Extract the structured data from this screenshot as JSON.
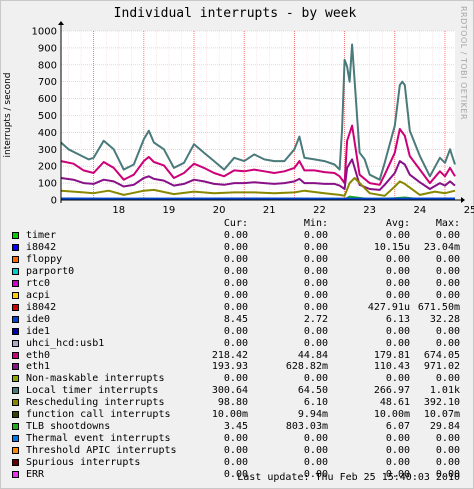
{
  "chart_data": {
    "type": "line",
    "title": "Individual interrupts - by week",
    "ylabel": "interrupts / second",
    "ylim": [
      0,
      1000
    ],
    "yticks": [
      0,
      100,
      200,
      300,
      400,
      500,
      600,
      700,
      800,
      900,
      1000
    ],
    "x_tick_labels": [
      "18",
      "19",
      "20",
      "21",
      "22",
      "23",
      "24",
      "25"
    ],
    "x_range_days": [
      17.35,
      25.2
    ],
    "grid": true,
    "series": [
      {
        "name": "eth0",
        "color": "#cc0077",
        "x": [
          17.35,
          17.6,
          17.8,
          18.0,
          18.2,
          18.4,
          18.6,
          18.8,
          19.0,
          19.1,
          19.2,
          19.4,
          19.6,
          19.8,
          20.0,
          20.2,
          20.4,
          20.6,
          20.8,
          21.0,
          21.2,
          21.4,
          21.6,
          21.8,
          22.0,
          22.1,
          22.2,
          22.4,
          22.6,
          22.8,
          22.9,
          23.0,
          23.05,
          23.15,
          23.3,
          23.5,
          23.7,
          23.8,
          24.0,
          24.1,
          24.2,
          24.3,
          24.5,
          24.7,
          24.9,
          25.0,
          25.1,
          25.2
        ],
        "y": [
          230,
          215,
          175,
          160,
          225,
          190,
          120,
          150,
          230,
          255,
          225,
          205,
          130,
          160,
          215,
          190,
          160,
          140,
          175,
          170,
          180,
          170,
          160,
          170,
          190,
          230,
          175,
          175,
          165,
          160,
          140,
          100,
          350,
          440,
          150,
          100,
          90,
          150,
          280,
          420,
          380,
          260,
          180,
          100,
          170,
          140,
          190,
          140
        ]
      },
      {
        "name": "eth1",
        "color": "#881188",
        "x": [
          17.35,
          17.6,
          17.8,
          18.0,
          18.2,
          18.4,
          18.6,
          18.8,
          19.0,
          19.1,
          19.2,
          19.4,
          19.6,
          19.8,
          20.0,
          20.2,
          20.4,
          20.6,
          20.8,
          21.0,
          21.2,
          21.4,
          21.6,
          21.8,
          22.0,
          22.1,
          22.2,
          22.4,
          22.6,
          22.8,
          22.9,
          23.0,
          23.05,
          23.15,
          23.3,
          23.5,
          23.7,
          23.8,
          24.0,
          24.1,
          24.2,
          24.3,
          24.5,
          24.7,
          24.9,
          25.0,
          25.1,
          25.2
        ],
        "y": [
          130,
          120,
          100,
          95,
          120,
          110,
          80,
          90,
          130,
          140,
          125,
          115,
          85,
          95,
          120,
          110,
          95,
          90,
          100,
          100,
          105,
          100,
          95,
          100,
          110,
          125,
          100,
          100,
          95,
          95,
          85,
          65,
          190,
          240,
          90,
          65,
          60,
          90,
          160,
          230,
          210,
          150,
          105,
          65,
          100,
          85,
          110,
          85
        ]
      },
      {
        "name": "Local timer interrupts",
        "color": "#4a7a7a",
        "x": [
          17.35,
          17.5,
          17.7,
          17.9,
          18.0,
          18.2,
          18.4,
          18.6,
          18.8,
          19.0,
          19.1,
          19.2,
          19.4,
          19.6,
          19.8,
          20.0,
          20.2,
          20.4,
          20.6,
          20.8,
          21.0,
          21.2,
          21.4,
          21.6,
          21.8,
          22.0,
          22.1,
          22.2,
          22.4,
          22.6,
          22.8,
          22.9,
          22.95,
          23.0,
          23.05,
          23.1,
          23.15,
          23.3,
          23.4,
          23.5,
          23.7,
          23.8,
          24.0,
          24.1,
          24.15,
          24.2,
          24.3,
          24.5,
          24.7,
          24.9,
          25.0,
          25.1,
          25.2
        ],
        "y": [
          340,
          300,
          270,
          240,
          250,
          350,
          300,
          180,
          210,
          360,
          410,
          340,
          300,
          190,
          220,
          330,
          280,
          230,
          180,
          250,
          230,
          270,
          240,
          230,
          230,
          300,
          375,
          250,
          240,
          230,
          210,
          180,
          420,
          830,
          790,
          700,
          920,
          280,
          240,
          150,
          120,
          220,
          440,
          680,
          700,
          680,
          410,
          260,
          140,
          250,
          220,
          300,
          210
        ]
      },
      {
        "name": "Rescheduling interrupts",
        "color": "#888800",
        "x": [
          17.35,
          17.8,
          18.0,
          18.3,
          18.6,
          19.0,
          19.2,
          19.6,
          20.0,
          20.4,
          20.8,
          21.2,
          21.6,
          22.0,
          22.2,
          22.6,
          22.9,
          23.0,
          23.1,
          23.2,
          23.5,
          23.8,
          24.0,
          24.1,
          24.2,
          24.5,
          24.8,
          25.0,
          25.2
        ],
        "y": [
          55,
          45,
          40,
          55,
          30,
          55,
          60,
          35,
          50,
          40,
          45,
          45,
          40,
          45,
          55,
          40,
          30,
          25,
          100,
          130,
          40,
          25,
          80,
          110,
          95,
          30,
          50,
          40,
          55
        ]
      },
      {
        "name": "TLB shootdowns",
        "color": "#22aa22",
        "x": [
          17.35,
          18.0,
          18.5,
          19.0,
          19.5,
          20.0,
          20.5,
          21.0,
          21.5,
          22.0,
          22.5,
          23.0,
          23.1,
          23.5,
          24.0,
          24.2,
          24.5,
          25.0,
          25.2
        ],
        "y": [
          8,
          6,
          3,
          8,
          4,
          7,
          4,
          6,
          5,
          8,
          5,
          3,
          20,
          4,
          10,
          15,
          5,
          6,
          5
        ]
      },
      {
        "name": "ide0",
        "color": "#0044cc",
        "x": [
          17.35,
          19.0,
          21.0,
          23.0,
          25.2
        ],
        "y": [
          9,
          8,
          9,
          8,
          9
        ]
      }
    ]
  },
  "legend_headers": {
    "cur": "Cur:",
    "min": "Min:",
    "avg": "Avg:",
    "max": "Max:"
  },
  "legend": [
    {
      "name": "timer",
      "color": "#00cc00",
      "cur": "0.00",
      "min": "0.00",
      "avg": "0.00",
      "max": "0.00"
    },
    {
      "name": "i8042",
      "color": "#0000ff",
      "cur": "0.00",
      "min": "0.00",
      "avg": "10.15u",
      "max": "23.04m"
    },
    {
      "name": "floppy",
      "color": "#ff6600",
      "cur": "0.00",
      "min": "0.00",
      "avg": "0.00",
      "max": "0.00"
    },
    {
      "name": "parport0",
      "color": "#00cccc",
      "cur": "0.00",
      "min": "0.00",
      "avg": "0.00",
      "max": "0.00"
    },
    {
      "name": "rtc0",
      "color": "#cc00cc",
      "cur": "0.00",
      "min": "0.00",
      "avg": "0.00",
      "max": "0.00"
    },
    {
      "name": "acpi",
      "color": "#ffcc00",
      "cur": "0.00",
      "min": "0.00",
      "avg": "0.00",
      "max": "0.00"
    },
    {
      "name": "i8042",
      "color": "#cc0000",
      "cur": "0.00",
      "min": "0.00",
      "avg": "427.91u",
      "max": "671.50m"
    },
    {
      "name": "ide0",
      "color": "#0044cc",
      "cur": "8.45",
      "min": "2.72",
      "avg": "6.13",
      "max": "32.28"
    },
    {
      "name": "ide1",
      "color": "#0000aa",
      "cur": "0.00",
      "min": "0.00",
      "avg": "0.00",
      "max": "0.00"
    },
    {
      "name": "uhci_hcd:usb1",
      "color": "#aaaacc",
      "cur": "0.00",
      "min": "0.00",
      "avg": "0.00",
      "max": "0.00"
    },
    {
      "name": "eth0",
      "color": "#cc0077",
      "cur": "218.42",
      "min": "44.84",
      "avg": "179.81",
      "max": "674.05"
    },
    {
      "name": "eth1",
      "color": "#881188",
      "cur": "193.93",
      "min": "628.82m",
      "avg": "110.43",
      "max": "971.02"
    },
    {
      "name": "Non-maskable interrupts",
      "color": "#88aa00",
      "cur": "0.00",
      "min": "0.00",
      "avg": "0.00",
      "max": "0.00"
    },
    {
      "name": "Local timer interrupts",
      "color": "#4a7a7a",
      "cur": "300.64",
      "min": "64.50",
      "avg": "266.97",
      "max": "1.01k"
    },
    {
      "name": "Rescheduling interrupts",
      "color": "#888800",
      "cur": "98.80",
      "min": "6.10",
      "avg": "48.61",
      "max": "392.10"
    },
    {
      "name": "function call interrupts",
      "color": "#334400",
      "cur": "10.00m",
      "min": "9.94m",
      "avg": "10.00m",
      "max": "10.07m"
    },
    {
      "name": "TLB shootdowns",
      "color": "#22aa22",
      "cur": "3.45",
      "min": "803.03m",
      "avg": "6.07",
      "max": "29.84"
    },
    {
      "name": "Thermal event interrupts",
      "color": "#0077ee",
      "cur": "0.00",
      "min": "0.00",
      "avg": "0.00",
      "max": "0.00"
    },
    {
      "name": "Threshold APIC interrupts",
      "color": "#ff8800",
      "cur": "0.00",
      "min": "0.00",
      "avg": "0.00",
      "max": "0.00"
    },
    {
      "name": "Spurious interrupts",
      "color": "#660000",
      "cur": "0.00",
      "min": "0.00",
      "avg": "0.00",
      "max": "0.00"
    },
    {
      "name": "ERR",
      "color": "#ee33ee",
      "cur": "0.00",
      "min": "0.00",
      "avg": "0.00",
      "max": "0.00"
    }
  ],
  "last_update": "Last update: Thu Feb 25 15:40:03 2010",
  "watermark": "RRDTOOL / TOBI OETIKER"
}
